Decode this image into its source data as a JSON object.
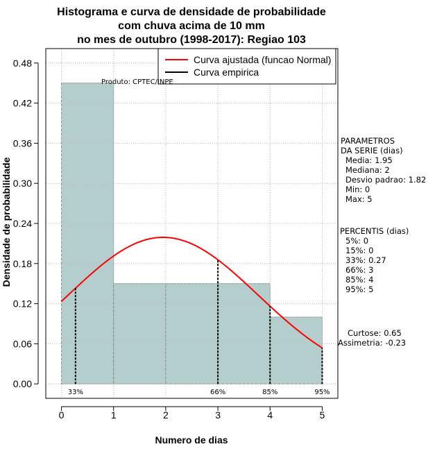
{
  "chart_data": {
    "type": "histogram",
    "title_lines": [
      "Histograma e curva de densidade de probabilidade",
      "com chuva acima de 10 mm",
      "no mes de outubro (1998-2017): Regiao 103"
    ],
    "xlabel": "Numero de dias",
    "ylabel": "Densidade de probabilidade",
    "xlim": [
      -0.3,
      5.3
    ],
    "ylim": [
      -0.0216,
      0.5016
    ],
    "x_ticks": [
      0,
      1,
      2,
      3,
      4,
      5
    ],
    "y_ticks": [
      0.0,
      0.06,
      0.12,
      0.18,
      0.24,
      0.3,
      0.36,
      0.42,
      0.48
    ],
    "y_tick_labels": [
      "0.00",
      "0.06",
      "0.12",
      "0.18",
      "0.24",
      "0.30",
      "0.36",
      "0.42",
      "0.48"
    ],
    "bins": [
      {
        "start": 0,
        "end": 1,
        "density": 0.45
      },
      {
        "start": 1,
        "end": 2,
        "density": 0.15
      },
      {
        "start": 2,
        "end": 3,
        "density": 0.15
      },
      {
        "start": 3,
        "end": 4,
        "density": 0.15
      },
      {
        "start": 4,
        "end": 5,
        "density": 0.1
      }
    ],
    "fitted_curve": {
      "name": "Curva ajustada (funcao Normal)",
      "distribution": "normal",
      "mean": 1.95,
      "sd": 1.82,
      "color": "#ff0000"
    },
    "empirical_curve": {
      "name": "Curva empirica",
      "color": "#000000"
    },
    "percentile_markers": [
      {
        "label": "33%",
        "x": 0.27
      },
      {
        "label": "66%",
        "x": 3
      },
      {
        "label": "85%",
        "x": 4
      },
      {
        "label": "95%",
        "x": 5
      }
    ],
    "product_label": "Produto: CPTEC/INPE",
    "parametros": {
      "header": [
        "PARAMETROS",
        "DA SERIE (dias)"
      ],
      "lines": [
        "Media: 1.95",
        "Mediana: 2",
        "Desvio padrao: 1.82",
        "Min: 0",
        "Max: 5"
      ]
    },
    "percentis": {
      "header": "PERCENTIS (dias)",
      "lines": [
        "5%: 0",
        "15%: 0",
        "33%: 0.27",
        "66%: 3",
        "85%: 4",
        "95%: 5"
      ]
    },
    "shape": {
      "curtose": "Curtose: 0.65",
      "assimetria": "Assimetria: -0.23"
    },
    "colors": {
      "bar_fill": "#b4cdcd",
      "grid": "#bebebe",
      "curve": "#ff0000"
    }
  }
}
